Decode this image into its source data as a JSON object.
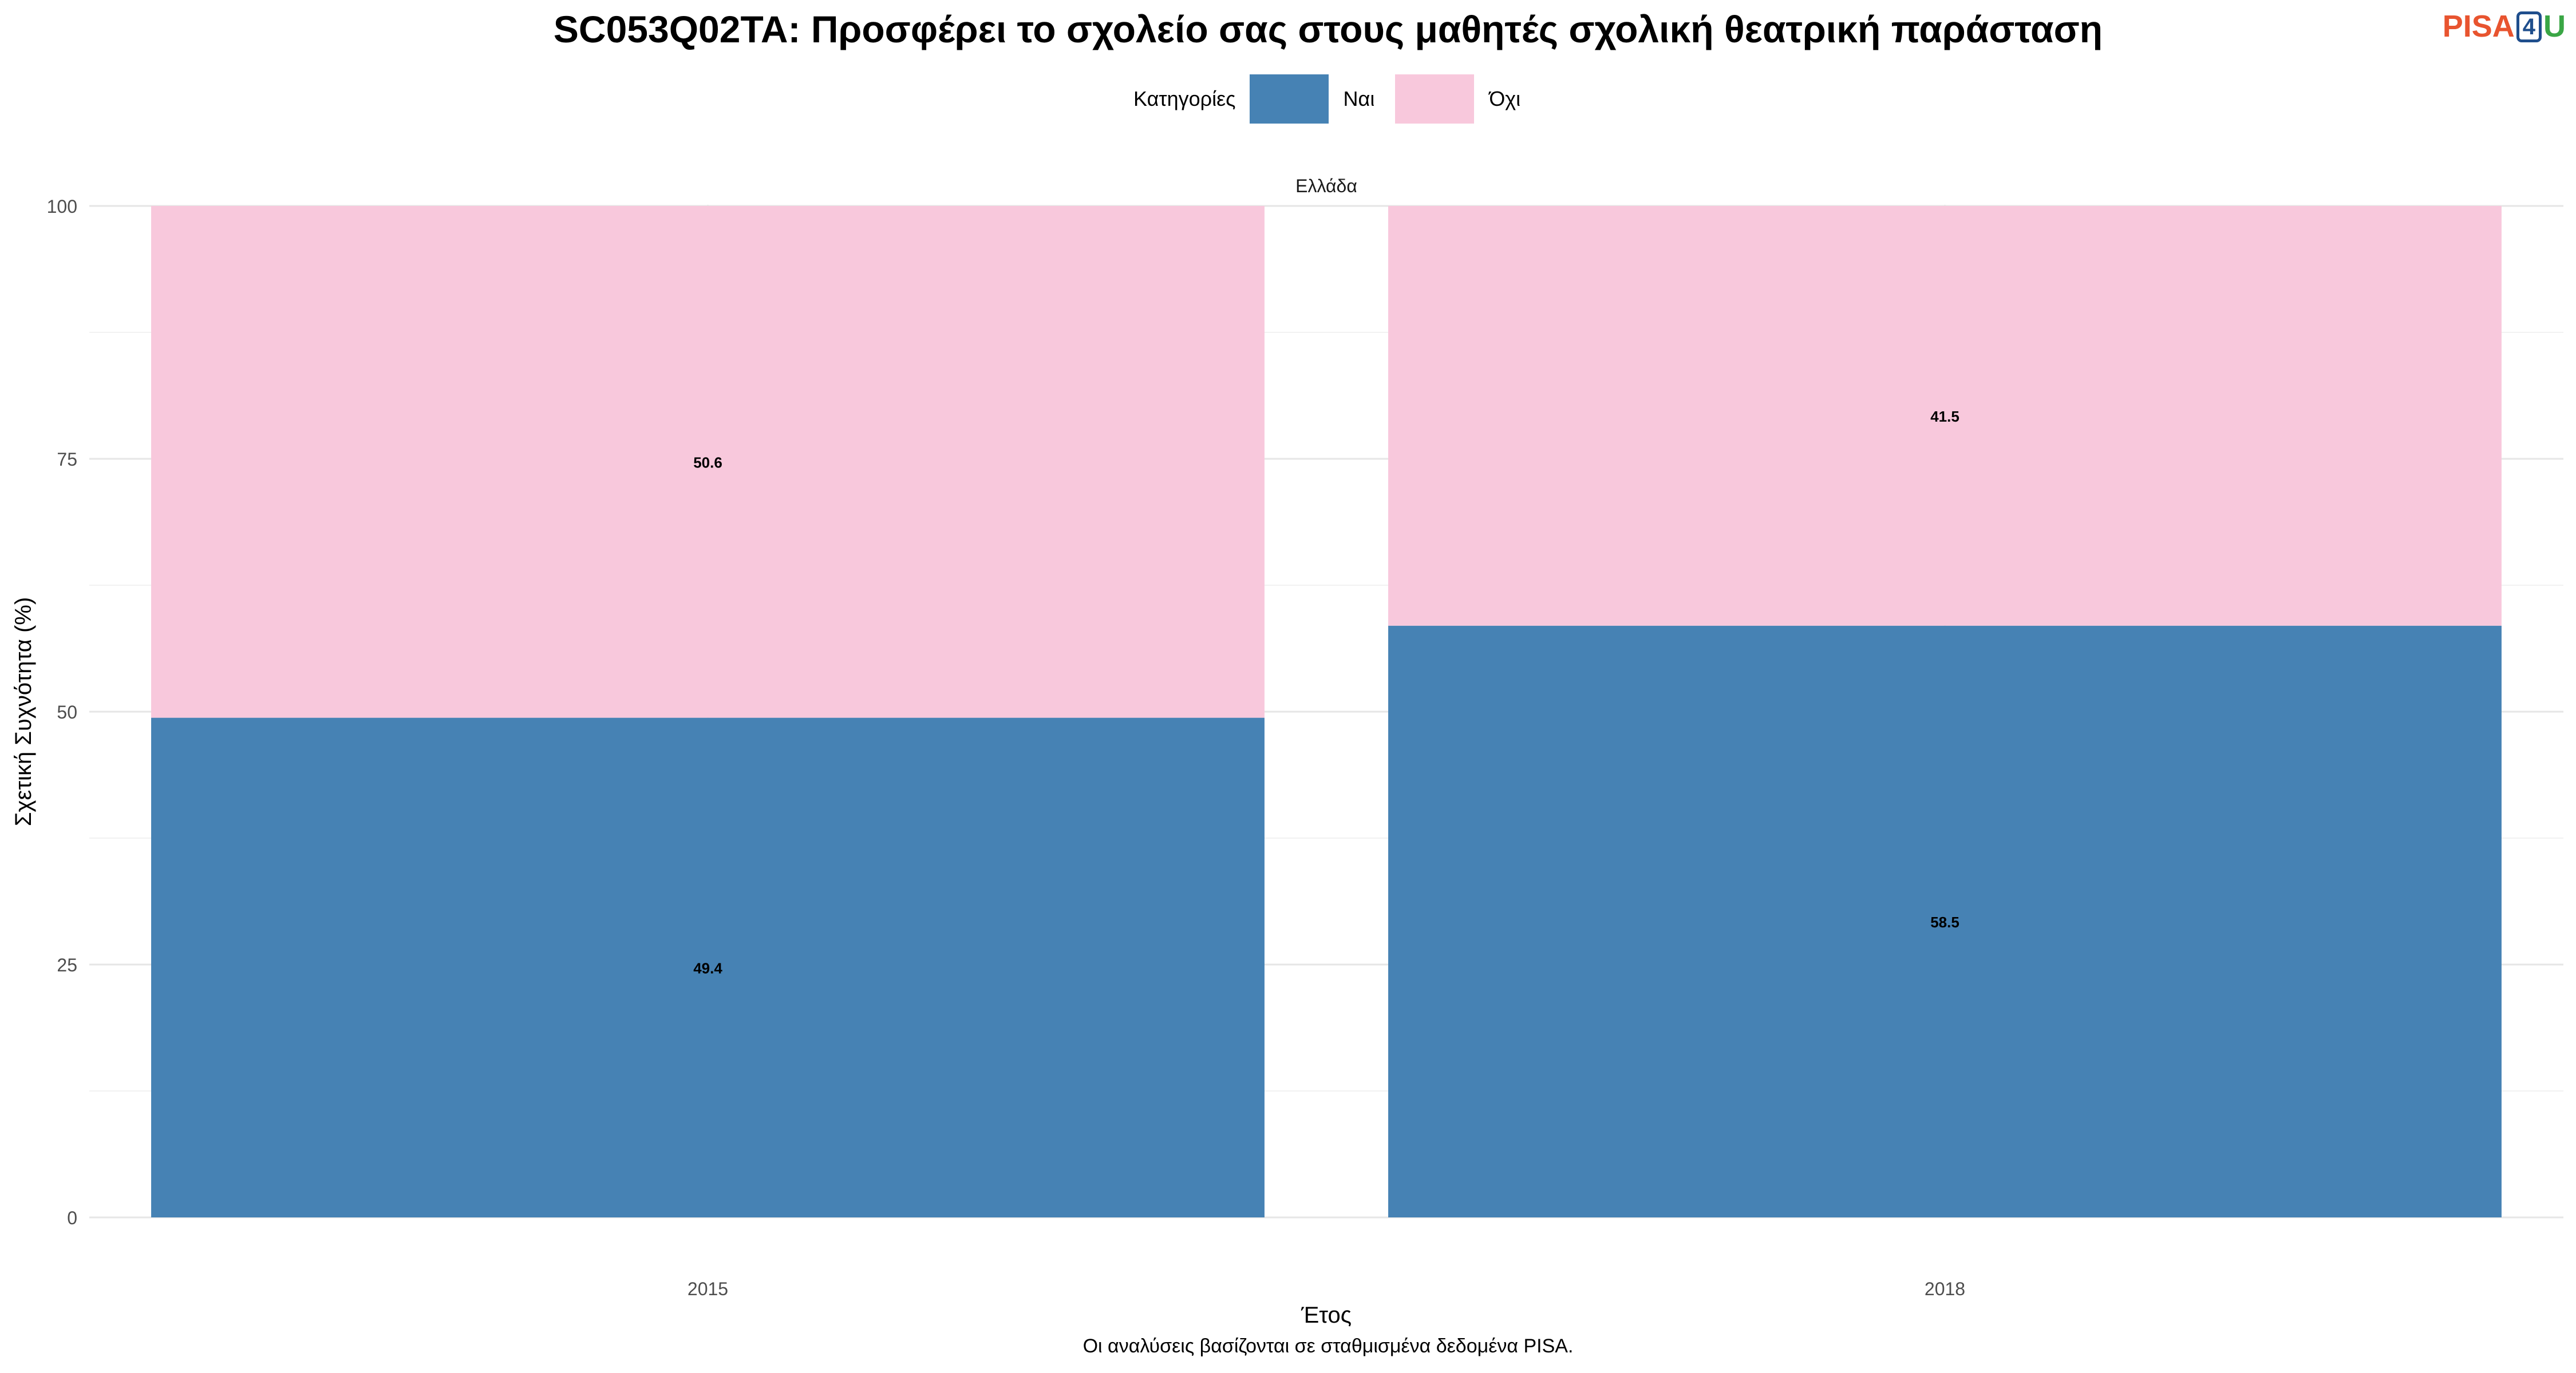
{
  "title": "SC053Q02TA: Προσφέρει το σχολείο σας στους μαθητές σχολική θεατρική παράσταση",
  "logo": {
    "part1": "PISA",
    "part2": "4",
    "part3": "U"
  },
  "legend": {
    "title": "Κατηγορίες",
    "items": [
      {
        "label": "Ναι",
        "color": "#4682b4"
      },
      {
        "label": "Όχι",
        "color": "#f8c8dc"
      }
    ]
  },
  "caption": "Οι αναλύσεις βασίζονται σε σταθμισμένα δεδομένα PISA.",
  "chart_data": {
    "type": "bar",
    "stacked": true,
    "facet": "Ελλάδα",
    "categories": [
      "2015",
      "2018"
    ],
    "series": [
      {
        "name": "Ναι",
        "values": [
          49.4,
          58.5
        ],
        "color": "#4682b4"
      },
      {
        "name": "Όχι",
        "values": [
          50.6,
          41.5
        ],
        "color": "#f8c8dc"
      }
    ],
    "xlabel": "Έτος",
    "ylabel": "Σχετική Συχνότητα (%)",
    "ylim": [
      0,
      100
    ],
    "yticks": [
      0,
      25,
      50,
      75,
      100
    ],
    "grid": true,
    "legend_position": "top"
  }
}
